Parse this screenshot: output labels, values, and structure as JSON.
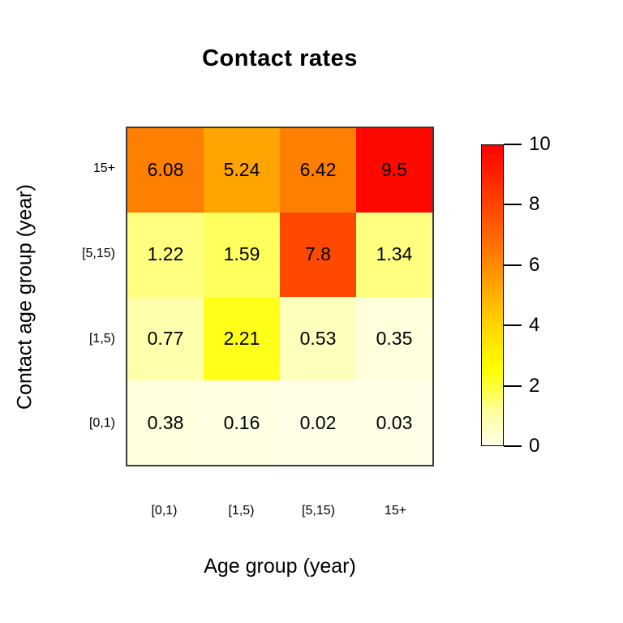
{
  "title": "Contact rates",
  "x_axis": {
    "label": "Age group (year)",
    "categories": [
      "[0,1)",
      "[1,5)",
      "[5,15)",
      "15+"
    ]
  },
  "y_axis": {
    "label": "Contact age group (year)",
    "categories_top_to_bottom": [
      "15+",
      "[5,15)",
      "[1,5)",
      "[0,1)"
    ]
  },
  "colorbar": {
    "min": 0,
    "max": 10,
    "tick_labels": [
      "0",
      "2",
      "4",
      "6",
      "8",
      "10"
    ],
    "tick_values": [
      0,
      2,
      4,
      6,
      8,
      10
    ],
    "low_color": "#FFFFE6",
    "mid_color": "#FFFF00",
    "high_color": "#FF0000"
  },
  "chart_data": {
    "type": "heatmap",
    "title": "Contact rates",
    "xlabel": "Age group (year)",
    "ylabel": "Contact age group (year)",
    "x_categories": [
      "[0,1)",
      "[1,5)",
      "[5,15)",
      "15+"
    ],
    "y_categories_top_to_bottom": [
      "15+",
      "[5,15)",
      "[1,5)",
      "[0,1)"
    ],
    "value_range": [
      0,
      10
    ],
    "palette": "reversed heat colors (ivory-yellow-orange-red)",
    "rows": [
      {
        "y_category": "15+",
        "values": [
          6.08,
          5.24,
          6.42,
          9.5
        ],
        "labels": [
          "6.08",
          "5.24",
          "6.42",
          "9.5"
        ],
        "cell_colors": [
          "#FF7F00",
          "#FFA400",
          "#FF7F00",
          "#FF0800"
        ]
      },
      {
        "y_category": "[5,15)",
        "values": [
          1.22,
          1.59,
          7.8,
          1.34
        ],
        "labels": [
          "1.22",
          "1.59",
          "7.8",
          "1.34"
        ],
        "cell_colors": [
          "#FFFF80",
          "#FFFF5E",
          "#FF4900",
          "#FFFF80"
        ]
      },
      {
        "y_category": "[1,5)",
        "values": [
          0.77,
          2.21,
          0.53,
          0.35
        ],
        "labels": [
          "0.77",
          "2.21",
          "0.53",
          "0.35"
        ],
        "cell_colors": [
          "#FFFFAC",
          "#FFFF1A",
          "#FFFFBC",
          "#FFFFDC"
        ]
      },
      {
        "y_category": "[0,1)",
        "values": [
          0.38,
          0.16,
          0.02,
          0.03
        ],
        "labels": [
          "0.38",
          "0.16",
          "0.02",
          "0.03"
        ],
        "cell_colors": [
          "#FFFFDE",
          "#FFFFE4",
          "#FFFFE8",
          "#FFFFE8"
        ]
      }
    ]
  }
}
